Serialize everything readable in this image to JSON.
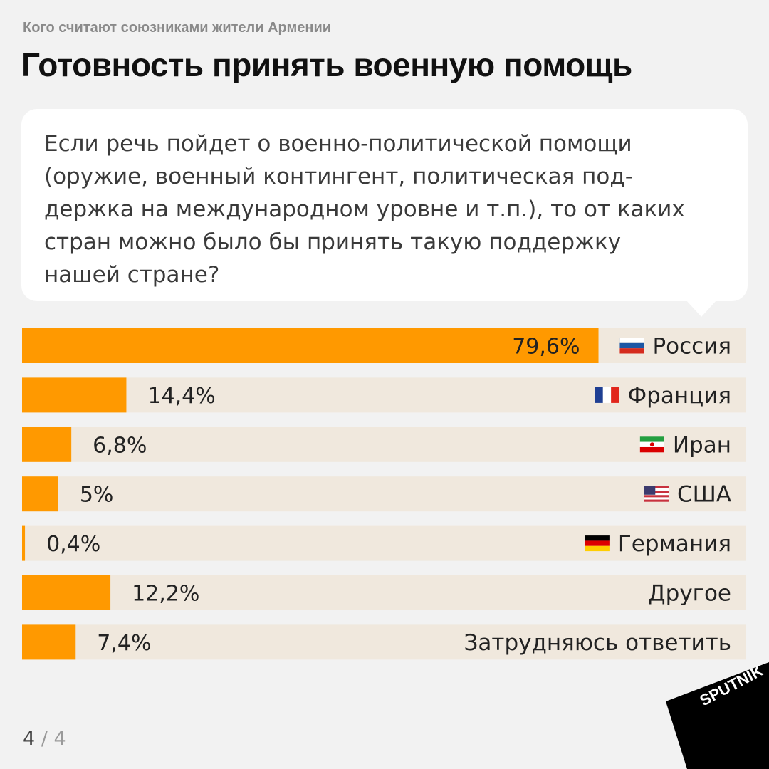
{
  "kicker": "Кого считают союзниками жители Армении",
  "headline": "Готовность принять военную помощь",
  "question": "Если речь пойдет о военно-политической помощи\n(оружие, военный контингент, политическая под-\nдержка на международном уровне и т.п.), то от каких\nстран можно было бы принять такую поддержку\nнашей стране?",
  "pager": {
    "current": "4",
    "sep": "/",
    "total": "4"
  },
  "logo": {
    "text": "SPUTNIK",
    "color": "#000000"
  },
  "colors": {
    "bar": "#ff9900",
    "track": "#f0e8dd",
    "text": "#222222"
  },
  "chart_data": {
    "type": "bar",
    "orientation": "horizontal",
    "title": "",
    "xlabel": "",
    "ylabel": "",
    "xlim": [
      0,
      100
    ],
    "grid": false,
    "unit": "%",
    "categories": [
      "Россия",
      "Франция",
      "Иран",
      "США",
      "Германия",
      "Другое",
      "Затрудняюсь ответить"
    ],
    "values": [
      79.6,
      14.4,
      6.8,
      5,
      0.4,
      12.2,
      7.4
    ],
    "labels": [
      "79,6%",
      "14,4%",
      "6,8%",
      "5%",
      "0,4%",
      "12,2%",
      "7,4%"
    ],
    "flags": [
      "russia-flag-icon",
      "france-flag-icon",
      "iran-flag-icon",
      "usa-flag-icon",
      "germany-flag-icon",
      "",
      ""
    ]
  }
}
